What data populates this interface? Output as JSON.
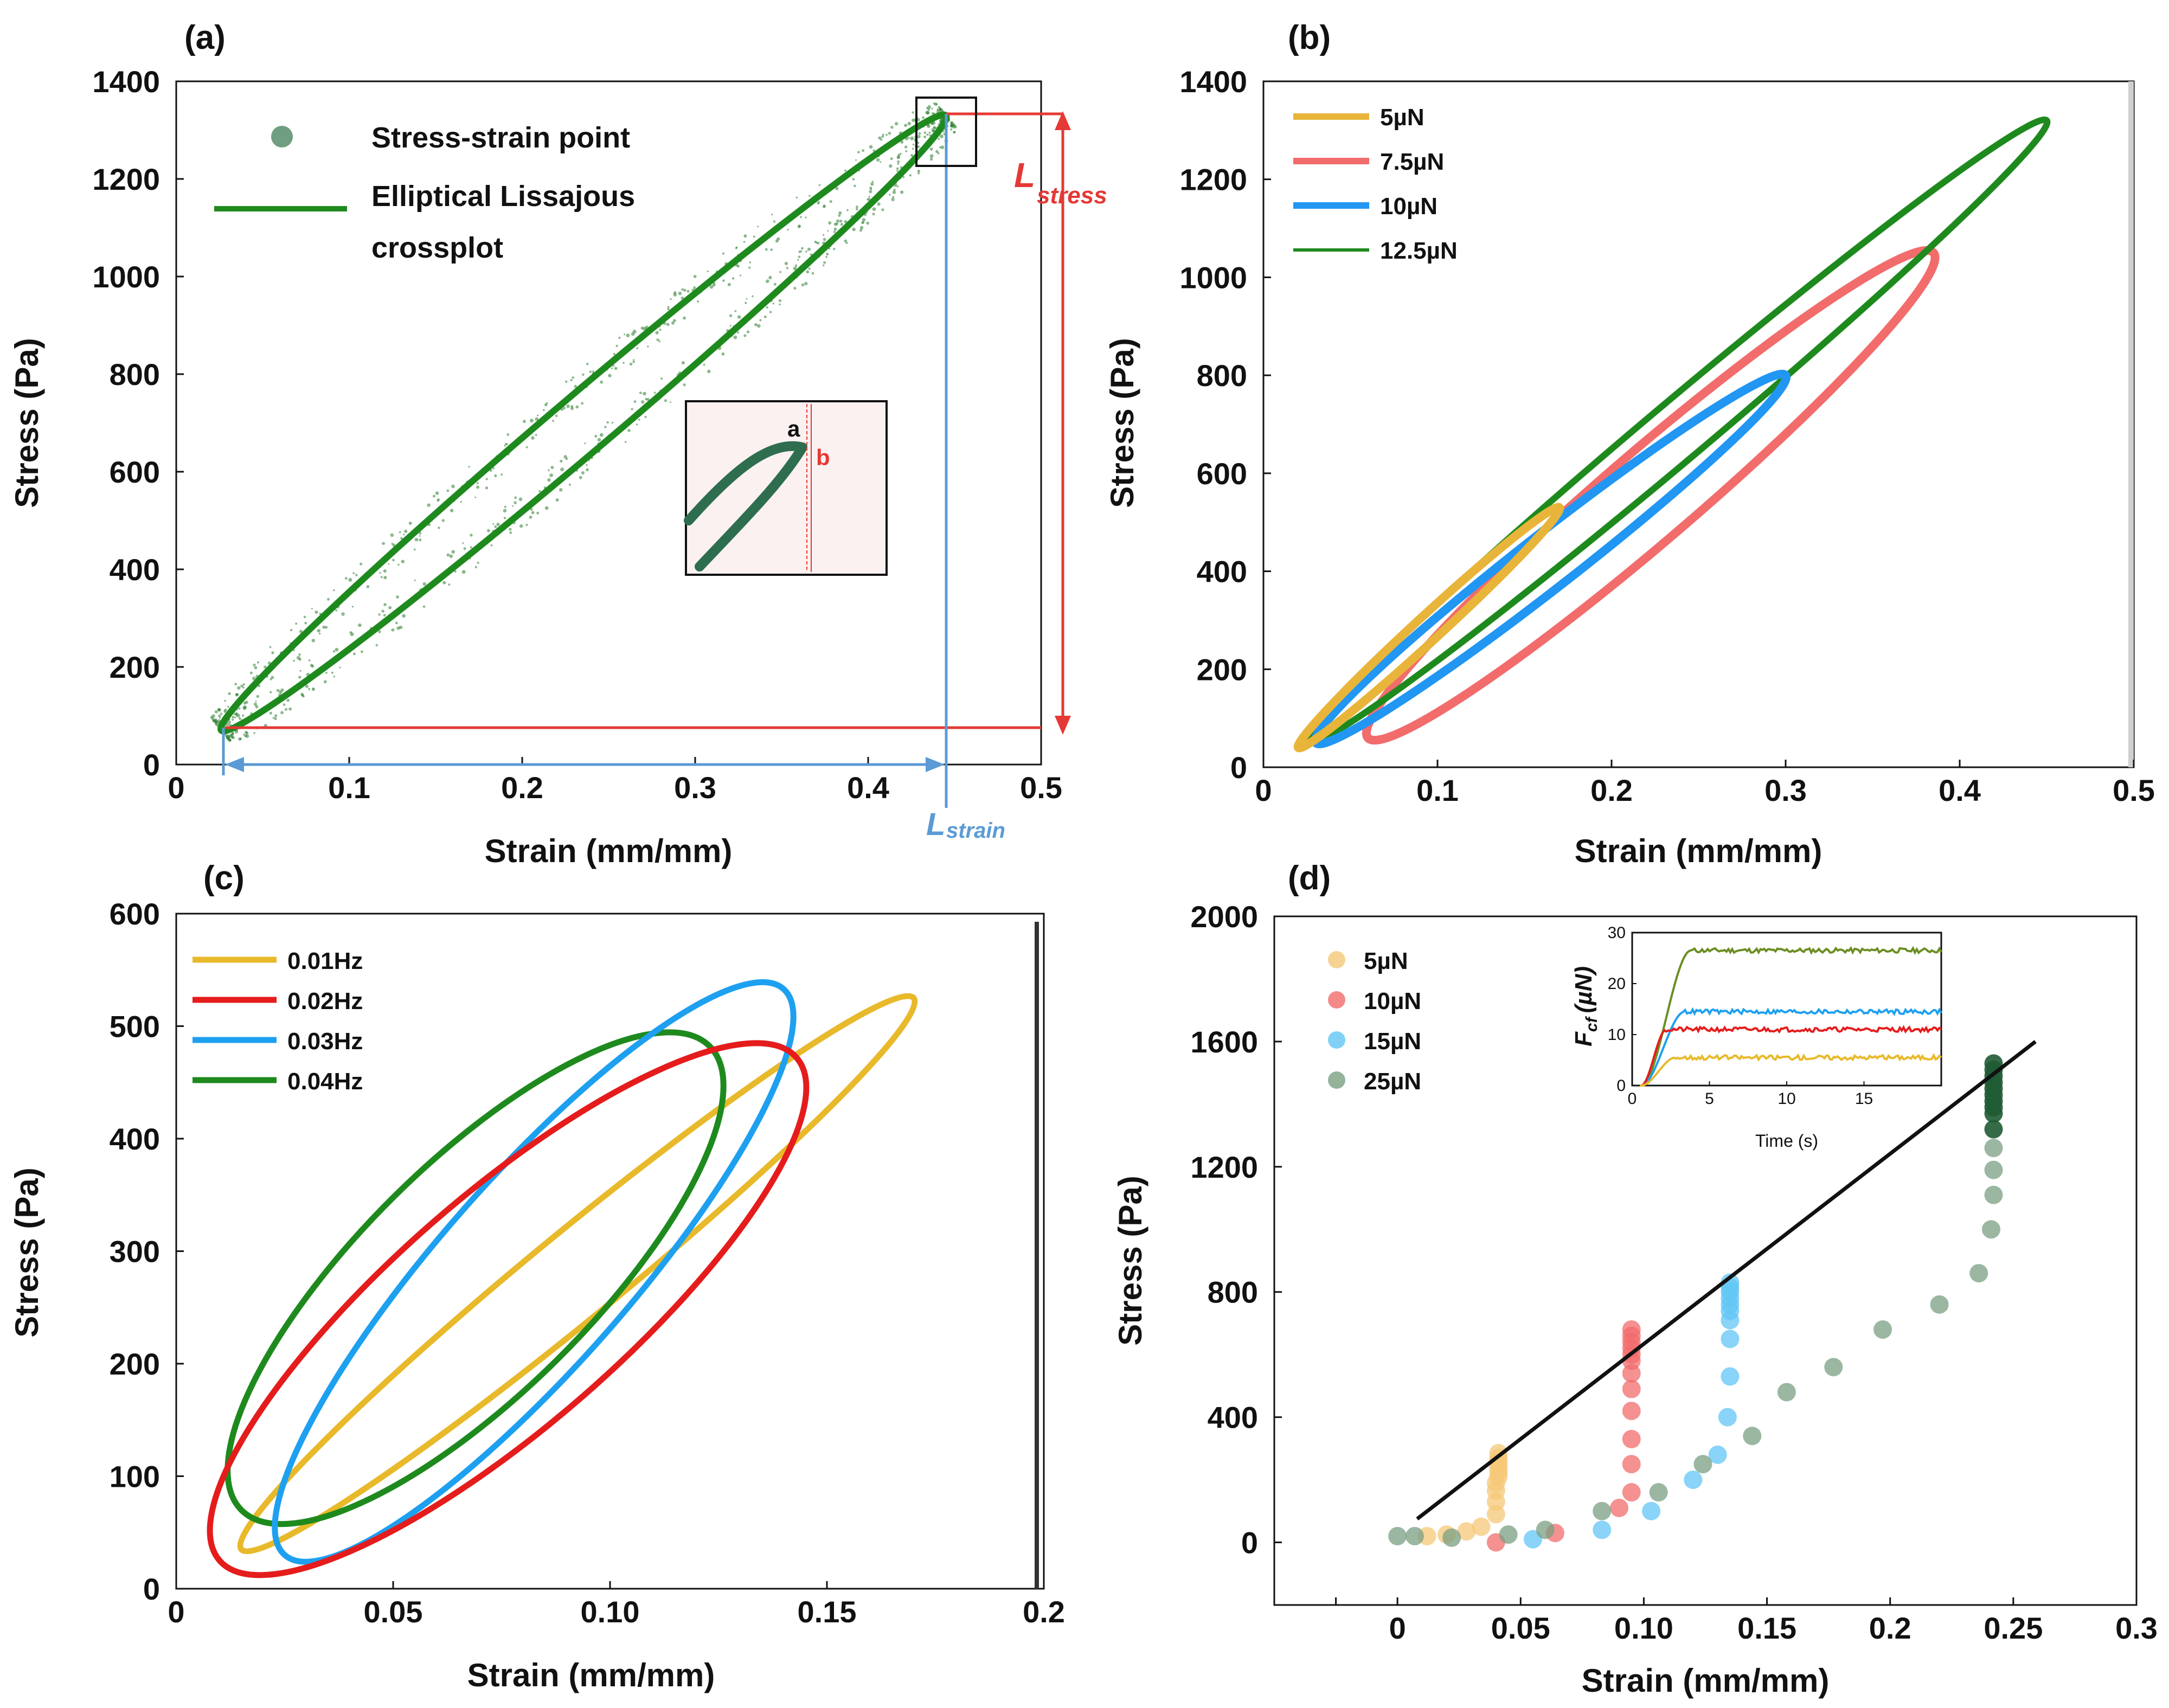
{
  "chart_data": [
    {
      "panel": "(a)",
      "type": "scatter",
      "xlabel": "Strain (mm/mm)",
      "ylabel": "Stress (Pa)",
      "xlim": [
        0,
        0.5
      ],
      "ylim": [
        0,
        1400
      ],
      "xticks": [
        "0",
        "0.1",
        "0.2",
        "0.3",
        "0.4",
        "0.5"
      ],
      "yticks": [
        "0",
        "200",
        "400",
        "600",
        "800",
        "1000",
        "1200",
        "1400"
      ],
      "legend": [
        "Stress-strain point",
        "Elliptical Lissajous",
        "crossplot"
      ],
      "annotations": {
        "l_stress": "L",
        "l_stress_sub": "stress",
        "l_strain": "L",
        "l_strain_sub": "strain",
        "inset_a": "a",
        "inset_b": "b"
      },
      "ellipse": {
        "x_min": 0.026,
        "x_max": 0.445,
        "y_min": 70,
        "y_max": 1330,
        "width": 0.06
      },
      "colors": {
        "points": "#2e7d32",
        "fit": "#1e8a1e",
        "stress": "#e53935",
        "strain": "#5b9bd5"
      }
    },
    {
      "panel": "(b)",
      "type": "line",
      "xlabel": "Strain (mm/mm)",
      "ylabel": "Stress (Pa)",
      "xlim": [
        0,
        0.5
      ],
      "ylim": [
        0,
        1400
      ],
      "xticks": [
        "0",
        "0.1",
        "0.2",
        "0.3",
        "0.4",
        "0.5"
      ],
      "yticks": [
        "0",
        "200",
        "400",
        "600",
        "800",
        "1000",
        "1200",
        "1400"
      ],
      "series": [
        {
          "name": "5µN",
          "color": "#e8b53a",
          "x_min": 0.02,
          "x_max": 0.17,
          "y_min": 40,
          "y_max": 530,
          "width": 0.07
        },
        {
          "name": "7.5µN",
          "color": "#f26c6c",
          "x_min": 0.06,
          "x_max": 0.385,
          "y_min": 60,
          "y_max": 1050,
          "width": 0.12
        },
        {
          "name": "10µN",
          "color": "#2196f3",
          "x_min": 0.03,
          "x_max": 0.3,
          "y_min": 50,
          "y_max": 800,
          "width": 0.09
        },
        {
          "name": "12.5µN",
          "color": "#1e8a1e",
          "x_min": 0.025,
          "x_max": 0.45,
          "y_min": 50,
          "y_max": 1320,
          "width": 0.06
        }
      ]
    },
    {
      "panel": "(c)",
      "type": "line",
      "xlabel": "Strain (mm/mm)",
      "ylabel": "Stress (Pa)",
      "xlim": [
        0,
        0.2
      ],
      "ylim": [
        0,
        600
      ],
      "xticks": [
        "0",
        "0.05",
        "0.10",
        "0.15",
        "0.2"
      ],
      "yticks": [
        "0",
        "100",
        "200",
        "300",
        "400",
        "500",
        "600"
      ],
      "series": [
        {
          "name": "0.01Hz",
          "color": "#e8b92a",
          "x_min": 0.015,
          "x_max": 0.17,
          "y_min": 35,
          "y_max": 525,
          "width": 0.1
        },
        {
          "name": "0.02Hz",
          "color": "#e51c1c",
          "x_min": 0.01,
          "x_max": 0.143,
          "y_min": 25,
          "y_max": 472,
          "width": 0.3
        },
        {
          "name": "0.03Hz",
          "color": "#1ea0f0",
          "x_min": 0.025,
          "x_max": 0.14,
          "y_min": 30,
          "y_max": 533,
          "width": 0.25
        },
        {
          "name": "0.04Hz",
          "color": "#1e8a1e",
          "x_min": 0.015,
          "x_max": 0.123,
          "y_min": 70,
          "y_max": 482,
          "width": 0.35
        }
      ]
    },
    {
      "panel": "(d)",
      "type": "scatter",
      "xlabel": "Strain (mm/mm)",
      "ylabel": "Stress (Pa)",
      "xlim": [
        -0.05,
        0.3
      ],
      "ylim": [
        -200,
        2000
      ],
      "xticks": [
        "0",
        "0.05",
        "0.10",
        "0.15",
        "0.2",
        "0.25",
        "0.3"
      ],
      "yticks": [
        "0",
        "400",
        "800",
        "1200",
        "1600",
        "2000"
      ],
      "fit_line": {
        "x": [
          0.008,
          0.259
        ],
        "y": [
          75,
          1600
        ]
      },
      "series": [
        {
          "name": "5µN",
          "color": "#f5c878",
          "x": [
            0.012,
            0.02,
            0.028,
            0.034,
            0.04,
            0.04,
            0.04,
            0.04,
            0.041,
            0.041,
            0.041,
            0.041,
            0.041,
            0.041
          ],
          "y": [
            20,
            25,
            35,
            50,
            90,
            130,
            165,
            190,
            210,
            225,
            240,
            255,
            270,
            285
          ]
        },
        {
          "name": "10µN",
          "color": "#f26c6c",
          "x": [
            0.04,
            0.064,
            0.09,
            0.095,
            0.095,
            0.095,
            0.095,
            0.095,
            0.095,
            0.095,
            0.095,
            0.095,
            0.095,
            0.095,
            0.095
          ],
          "y": [
            0,
            30,
            110,
            160,
            250,
            330,
            420,
            490,
            540,
            580,
            600,
            620,
            640,
            660,
            680
          ]
        },
        {
          "name": "15µN",
          "color": "#61c5f5",
          "x": [
            0.055,
            0.083,
            0.103,
            0.12,
            0.13,
            0.134,
            0.135,
            0.135,
            0.135,
            0.135,
            0.135,
            0.135,
            0.135,
            0.135,
            0.135
          ],
          "y": [
            10,
            40,
            100,
            200,
            280,
            400,
            530,
            650,
            710,
            740,
            760,
            780,
            800,
            815,
            830
          ]
        },
        {
          "name": "25µN",
          "color": "#7a9f82",
          "x": [
            0,
            0.007,
            0.022,
            0.045,
            0.06,
            0.083,
            0.106,
            0.124,
            0.144,
            0.158,
            0.177,
            0.197,
            0.22,
            0.236,
            0.241,
            0.242,
            0.242,
            0.242,
            0.242,
            0.242,
            0.242,
            0.242,
            0.242,
            0.242,
            0.242,
            0.242,
            0.242,
            0.242
          ],
          "y": [
            20,
            20,
            15,
            25,
            40,
            100,
            160,
            250,
            340,
            480,
            560,
            680,
            760,
            860,
            1000,
            1110,
            1190,
            1260,
            1320,
            1370,
            1390,
            1410,
            1430,
            1450,
            1470,
            1490,
            1510,
            1530
          ]
        }
      ],
      "inset": {
        "xlabel": "Time (s)",
        "ylabel": "F",
        "ylabel_sub": "cf",
        "ylabel_unit": "(µN)",
        "xlim": [
          0,
          20
        ],
        "ylim": [
          0,
          30
        ],
        "xticks": [
          "0",
          "5",
          "10",
          "15"
        ],
        "yticks": [
          "0",
          "10",
          "20",
          "30"
        ],
        "lines": [
          {
            "name": "25µN",
            "color": "#6b8e23",
            "plateau": 26.5,
            "rise": 3.2
          },
          {
            "name": "15µN",
            "color": "#1ea0f0",
            "plateau": 14.5,
            "rise": 2.8
          },
          {
            "name": "10µN",
            "color": "#e51c1c",
            "plateau": 11,
            "rise": 1.6
          },
          {
            "name": "5µN",
            "color": "#e8b92a",
            "plateau": 5.5,
            "rise": 2.2
          }
        ]
      }
    }
  ]
}
